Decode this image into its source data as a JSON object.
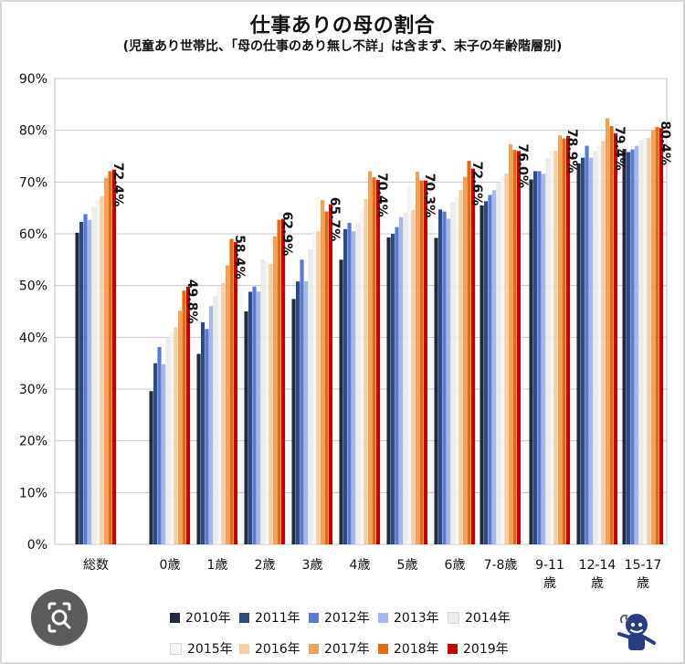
{
  "title": "仕事ありの母の割合",
  "subtitle": "(児童あり世帯比、「母の仕事のあり無し不詳」は含まず、末子の年齢階層別)",
  "colors": {
    "2010": "#1f2a3f",
    "2011": "#2f4a7f",
    "2012": "#5a7bd1",
    "2013": "#a6b8f0",
    "2014": "#ececec",
    "2015": "#f5f5f5",
    "2016": "#f6cfa6",
    "2017": "#f0a35b",
    "2018": "#e46b10",
    "2019": "#c40000"
  },
  "chart_data": {
    "type": "bar",
    "categories": [
      "総数",
      "0歳",
      "1歳",
      "2歳",
      "3歳",
      "4歳",
      "5歳",
      "6歳",
      "7-8歳",
      "9-11歳",
      "12-14歳",
      "15-17歳"
    ],
    "category_label_lines": [
      [
        "総数"
      ],
      [
        "0歳"
      ],
      [
        "1歳"
      ],
      [
        "2歳"
      ],
      [
        "3歳"
      ],
      [
        "4歳"
      ],
      [
        "5歳"
      ],
      [
        "6歳"
      ],
      [
        "7-8歳"
      ],
      [
        "9-11",
        "歳"
      ],
      [
        "12-14",
        "歳"
      ],
      [
        "15-17",
        "歳"
      ]
    ],
    "series": [
      {
        "name": "2010年",
        "values": [
          60.2,
          29.6,
          36.8,
          45.0,
          47.4,
          55.0,
          59.3,
          59.2,
          65.5,
          70.5,
          73.6,
          76.4
        ]
      },
      {
        "name": "2011年",
        "values": [
          62.3,
          35.0,
          42.9,
          48.8,
          50.8,
          60.9,
          60.0,
          64.7,
          66.3,
          72.1,
          74.7,
          75.8
        ]
      },
      {
        "name": "2012年",
        "values": [
          63.8,
          38.1,
          41.6,
          49.8,
          55.0,
          62.1,
          61.3,
          64.3,
          67.5,
          72.1,
          77.0,
          76.3
        ]
      },
      {
        "name": "2013年",
        "values": [
          62.7,
          34.8,
          46.0,
          48.8,
          50.8,
          60.5,
          63.2,
          62.9,
          68.4,
          71.6,
          74.7,
          77.0
        ]
      },
      {
        "name": "2014年",
        "values": [
          65.0,
          40.0,
          48.0,
          55.0,
          57.0,
          62.0,
          64.0,
          66.0,
          70.0,
          74.5,
          76.0,
          78.0
        ]
      },
      {
        "name": "2015年",
        "values": [
          66.5,
          40.8,
          49.7,
          54.5,
          60.4,
          64.3,
          69.4,
          67.0,
          71.0,
          76.0,
          77.0,
          78.5
        ]
      },
      {
        "name": "2016年",
        "values": [
          67.2,
          41.9,
          50.5,
          54.2,
          60.5,
          66.7,
          64.6,
          68.4,
          71.6,
          76.0,
          77.9,
          78.5
        ]
      },
      {
        "name": "2017年",
        "values": [
          70.8,
          45.1,
          53.9,
          59.5,
          66.5,
          72.1,
          72.0,
          71.0,
          77.3,
          79.0,
          82.3,
          80.0
        ]
      },
      {
        "name": "2018年",
        "values": [
          72.1,
          49.0,
          59.0,
          62.7,
          64.3,
          70.9,
          70.3,
          74.1,
          76.2,
          78.4,
          80.8,
          80.6
        ]
      },
      {
        "name": "2019年",
        "values": [
          72.4,
          49.8,
          58.4,
          62.9,
          65.7,
          70.4,
          70.3,
          72.6,
          76.0,
          78.9,
          79.4,
          80.4
        ]
      }
    ],
    "data_labels": [
      "72.4%",
      "49.8%",
      "58.4%",
      "62.9%",
      "65.7%",
      "70.4%",
      "70.3%",
      "72.6%",
      "76.0%",
      "78.9%",
      "79.4%",
      "80.4%"
    ],
    "ylim": [
      0,
      90
    ],
    "y_ticks": [
      "0%",
      "10%",
      "20%",
      "30%",
      "40%",
      "50%",
      "60%",
      "70%",
      "80%",
      "90%"
    ],
    "grid": true
  },
  "icons": {
    "search_badge": "search-badge-icon",
    "mascot": "mascot-icon"
  }
}
